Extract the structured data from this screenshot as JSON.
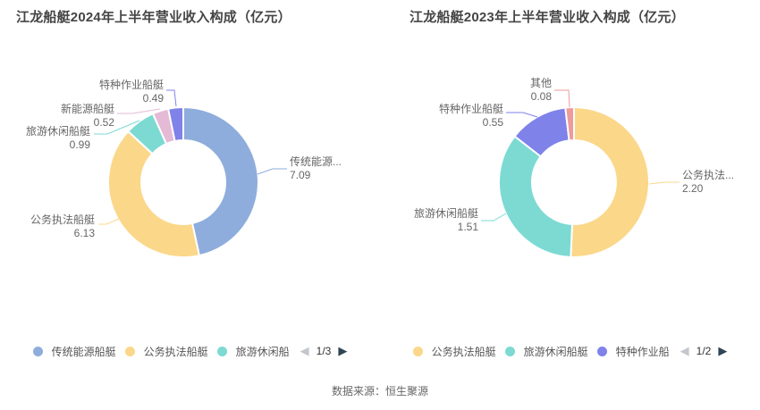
{
  "chart_data": [
    {
      "type": "pie",
      "title": "江龙船艇2024年上半年营业收入构成（亿元）",
      "legend_position": "bottom",
      "slices": [
        {
          "label": "传统能源...",
          "value": 7.09,
          "value_text": "7.09",
          "color": "#8EADDC"
        },
        {
          "label": "公务执法船艇",
          "value": 6.13,
          "value_text": "6.13",
          "color": "#FBD78A"
        },
        {
          "label": "旅游休闲船艇",
          "value": 0.99,
          "value_text": "0.99",
          "color": "#7CDAD3"
        },
        {
          "label": "新能源船艇",
          "value": 0.52,
          "value_text": "0.52",
          "color": "#E5BAD6"
        },
        {
          "label": "特种作业船艇",
          "value": 0.49,
          "value_text": "0.49",
          "color": "#7E82E9"
        }
      ],
      "legend": {
        "items": [
          "传统能源船艇",
          "公务执法船艇",
          "旅游休闲船"
        ],
        "item_colors": [
          "#8EADDC",
          "#FBD78A",
          "#7CDAD3"
        ],
        "page": "1/3"
      }
    },
    {
      "type": "pie",
      "title": "江龙船艇2023年上半年营业收入构成（亿元）",
      "legend_position": "bottom",
      "slices": [
        {
          "label": "公务执法...",
          "value": 2.2,
          "value_text": "2.20",
          "color": "#FBD78A"
        },
        {
          "label": "旅游休闲船艇",
          "value": 1.51,
          "value_text": "1.51",
          "color": "#7CDAD3"
        },
        {
          "label": "特种作业船艇",
          "value": 0.55,
          "value_text": "0.55",
          "color": "#7E82E9"
        },
        {
          "label": "其他",
          "value": 0.08,
          "value_text": "0.08",
          "color": "#EF9A9B"
        }
      ],
      "legend": {
        "items": [
          "公务执法船艇",
          "旅游休闲船艇",
          "特种作业船"
        ],
        "item_colors": [
          "#FBD78A",
          "#7CDAD3",
          "#7E82E9"
        ],
        "page": "1/2"
      }
    }
  ],
  "icons": {
    "prev": "◀",
    "next": "▶"
  },
  "footer": "数据来源：恒生聚源"
}
